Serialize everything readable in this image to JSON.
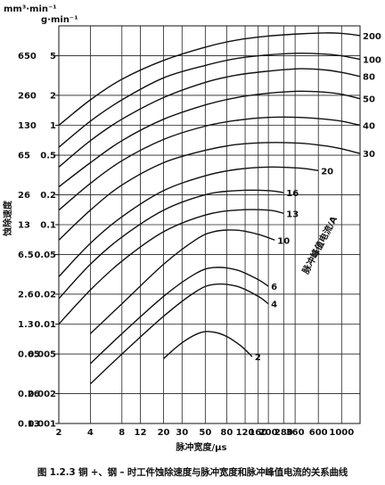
{
  "caption": "图 1.2.3   铜 +、钢 – 时工件蚀除速度与脉冲宽度和脉冲峰值电流的关系曲线",
  "chart_data": {
    "type": "line",
    "xscale": "log",
    "yscale": "log",
    "xlim": [
      2,
      1500
    ],
    "ylim": [
      0.001,
      10
    ],
    "grid": true,
    "xlabel": "脉冲宽度/μs",
    "ylabel": "蚀除速度",
    "y_unit_volume": "mm³·min⁻¹",
    "y_unit_mass": "g·min⁻¹",
    "curve_family_label": "脉冲峰值电流/A",
    "x_ticks": [
      {
        "v": 2,
        "label": "2"
      },
      {
        "v": 4,
        "label": "4"
      },
      {
        "v": 8,
        "label": "8"
      },
      {
        "v": 12,
        "label": "12"
      },
      {
        "v": 20,
        "label": "20"
      },
      {
        "v": 30,
        "label": "30"
      },
      {
        "v": 50,
        "label": "50"
      },
      {
        "v": 80,
        "label": "80"
      },
      {
        "v": 120,
        "label": "120"
      },
      {
        "v": 160,
        "label": "160"
      },
      {
        "v": 200,
        "label": "200"
      },
      {
        "v": 280,
        "label": "280"
      },
      {
        "v": 360,
        "label": "360"
      },
      {
        "v": 600,
        "label": "600"
      },
      {
        "v": 1000,
        "label": "1000"
      }
    ],
    "y_ticks": [
      {
        "v": 5,
        "mass": "5",
        "volume": "650"
      },
      {
        "v": 2,
        "mass": "2",
        "volume": "260"
      },
      {
        "v": 1,
        "mass": "1",
        "volume": "130"
      },
      {
        "v": 0.5,
        "mass": "0.5",
        "volume": "65"
      },
      {
        "v": 0.2,
        "mass": "0.2",
        "volume": "26"
      },
      {
        "v": 0.1,
        "mass": "0.1",
        "volume": "13"
      },
      {
        "v": 0.05,
        "mass": "0.05",
        "volume": "6.5"
      },
      {
        "v": 0.02,
        "mass": "0.02",
        "volume": "2.6"
      },
      {
        "v": 0.01,
        "mass": "0.01",
        "volume": "1.3"
      },
      {
        "v": 0.005,
        "mass": "0.005",
        "volume": "0.65"
      },
      {
        "v": 0.002,
        "mass": "0.002",
        "volume": "0.26"
      },
      {
        "v": 0.001,
        "mass": "0.001",
        "volume": "0.13"
      }
    ],
    "series": [
      {
        "name": "200",
        "x": [
          2,
          4,
          8,
          20,
          50,
          100,
          200,
          400,
          700,
          1000,
          1500
        ],
        "y": [
          1.0,
          1.8,
          2.9,
          4.5,
          6.1,
          7.2,
          7.9,
          8.3,
          8.5,
          8.4,
          8.0
        ]
      },
      {
        "name": "100",
        "x": [
          2,
          4,
          8,
          20,
          50,
          100,
          200,
          400,
          700,
          1000,
          1500
        ],
        "y": [
          0.6,
          1.1,
          1.8,
          3.0,
          4.0,
          4.7,
          5.1,
          5.3,
          5.2,
          5.0,
          4.6
        ]
      },
      {
        "name": "80",
        "x": [
          2,
          4,
          8,
          20,
          50,
          100,
          200,
          400,
          700,
          1000,
          1500
        ],
        "y": [
          0.38,
          0.7,
          1.15,
          1.9,
          2.7,
          3.2,
          3.5,
          3.7,
          3.6,
          3.4,
          3.1
        ]
      },
      {
        "name": "50",
        "x": [
          2,
          4,
          8,
          20,
          50,
          100,
          200,
          400,
          700,
          1000,
          1500
        ],
        "y": [
          0.24,
          0.42,
          0.7,
          1.15,
          1.6,
          1.9,
          2.1,
          2.2,
          2.15,
          2.05,
          1.85
        ]
      },
      {
        "name": "40",
        "x": [
          2,
          4,
          8,
          20,
          50,
          100,
          200,
          400,
          700,
          1000,
          1500
        ],
        "y": [
          0.14,
          0.26,
          0.44,
          0.72,
          0.98,
          1.12,
          1.2,
          1.2,
          1.15,
          1.1,
          1.0
        ]
      },
      {
        "name": "30",
        "x": [
          2,
          4,
          8,
          20,
          50,
          100,
          200,
          400,
          700,
          1000,
          1500
        ],
        "y": [
          0.07,
          0.14,
          0.25,
          0.42,
          0.56,
          0.64,
          0.67,
          0.66,
          0.62,
          0.58,
          0.52
        ]
      },
      {
        "name": "20",
        "x": [
          2,
          4,
          8,
          20,
          50,
          100,
          200,
          400,
          600
        ],
        "y": [
          0.03,
          0.065,
          0.12,
          0.22,
          0.31,
          0.36,
          0.38,
          0.37,
          0.35
        ]
      },
      {
        "name": "16",
        "x": [
          2,
          4,
          8,
          20,
          50,
          100,
          200,
          280
        ],
        "y": [
          0.018,
          0.04,
          0.075,
          0.14,
          0.2,
          0.22,
          0.22,
          0.21
        ]
      },
      {
        "name": "13",
        "x": [
          2,
          4,
          8,
          20,
          50,
          100,
          200,
          280
        ],
        "y": [
          0.01,
          0.022,
          0.043,
          0.085,
          0.125,
          0.14,
          0.14,
          0.13
        ]
      },
      {
        "name": "10",
        "x": [
          4,
          8,
          20,
          40,
          60,
          100,
          160,
          230
        ],
        "y": [
          0.008,
          0.016,
          0.04,
          0.07,
          0.085,
          0.088,
          0.08,
          0.07
        ]
      },
      {
        "name": "6",
        "x": [
          4,
          8,
          20,
          40,
          60,
          100,
          160,
          200
        ],
        "y": [
          0.004,
          0.008,
          0.019,
          0.032,
          0.037,
          0.035,
          0.028,
          0.024
        ]
      },
      {
        "name": "4",
        "x": [
          4,
          8,
          20,
          40,
          60,
          100,
          160,
          200
        ],
        "y": [
          0.0025,
          0.005,
          0.012,
          0.021,
          0.025,
          0.024,
          0.019,
          0.016
        ]
      },
      {
        "name": "2",
        "x": [
          20,
          30,
          45,
          60,
          80,
          110,
          140
        ],
        "y": [
          0.0045,
          0.0065,
          0.0082,
          0.0083,
          0.0075,
          0.006,
          0.0047
        ]
      }
    ]
  }
}
